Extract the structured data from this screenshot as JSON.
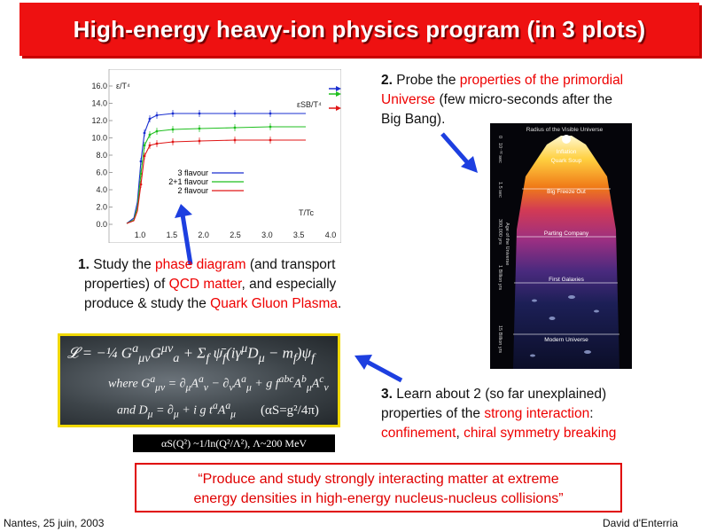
{
  "slide": {
    "title": "High-energy heavy-ion physics program (in 3 plots)",
    "footer_left": "Nantes, 25 juin, 2003",
    "footer_right": "David d'Enterria"
  },
  "plot": {
    "y_label": "ε/T⁴",
    "y_label_right": "εSB/T⁴",
    "x_label": "T/Tc",
    "y_ticks": [
      "16.0",
      "14.0",
      "12.0",
      "10.0",
      "8.0",
      "6.0",
      "4.0",
      "2.0",
      "0.0"
    ],
    "x_ticks": [
      "1.0",
      "1.5",
      "2.0",
      "2.5",
      "3.0",
      "3.5",
      "4.0"
    ],
    "legend": [
      "3 flavour",
      "2+1 flavour",
      "2 flavour"
    ],
    "colors": {
      "three": "#1a2fd0",
      "twoone": "#1fbf1f",
      "two": "#e01616"
    }
  },
  "block1": {
    "num": "1.",
    "t1": " Study the ",
    "r1": "phase diagram",
    "t2": " (and transport",
    "t3": "properties) of ",
    "r2": "QCD matter",
    "t4": ", and especially",
    "t5": "produce & study the ",
    "r3": "Quark Gluon Plasma",
    "t6": "."
  },
  "block2": {
    "num": "2.",
    "t1": " Probe the ",
    "r1": "properties of the primordial",
    "r2": "Universe",
    "t2": " (few micro-seconds after the",
    "t3": "Big Bang)."
  },
  "block3": {
    "num": "3.",
    "t1": " Learn about 2 (so far unexplained)",
    "t2": "properties of the ",
    "r1": "strong interaction",
    "t3": ":",
    "r2": "confinement",
    "t4": ", ",
    "r3": "chiral symmetry breaking"
  },
  "universe": {
    "header": "Radius of the Visible Universe",
    "bands": [
      "Inflation",
      "Quark Soup",
      "Big Freeze Out",
      "Parting Company",
      "First Galaxies",
      "Modern Universe"
    ],
    "side_labels": [
      "0",
      "10⁻³² sec",
      "1.5 sec",
      "300,000 yrs",
      "1 Billion yrs",
      "15 Billion yrs"
    ],
    "axis_label": "Age of the Universe"
  },
  "equation": {
    "alpha_s": "(αS=g²/4π)",
    "alpha_formula": "αS(Q²) ~1/ln(Q²/Λ²), Λ~200 MeV"
  },
  "quote": {
    "line1": "“Produce and study strongly interacting matter at extreme",
    "line2": "energy densities in high-energy nucleus-nucleus collisions”"
  }
}
